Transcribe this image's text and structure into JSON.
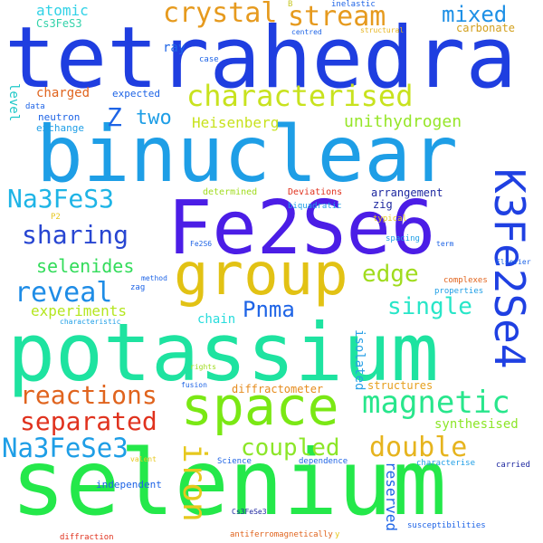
{
  "words": [
    {
      "id": "tetrahedra",
      "text": "tetrahedra",
      "color": "#1f3ee0"
    },
    {
      "id": "binuclear",
      "text": "binuclear",
      "color": "#1e9ee6"
    },
    {
      "id": "fe2se6",
      "text": "Fe2Se6",
      "color": "#4b1de6"
    },
    {
      "id": "potassium",
      "text": "potassium",
      "color": "#1ee3a0"
    },
    {
      "id": "selenium",
      "text": "selenium",
      "color": "#24e84a"
    },
    {
      "id": "group",
      "text": "group",
      "color": "#e2c214"
    },
    {
      "id": "space",
      "text": "space",
      "color": "#7ae814"
    },
    {
      "id": "k3fe2se4",
      "text": "K3Fe2Se4",
      "color": "#1f40e2"
    },
    {
      "id": "characterised",
      "text": "characterised",
      "color": "#c8e21e"
    },
    {
      "id": "crystal",
      "text": "crystal",
      "color": "#e69a1e"
    },
    {
      "id": "stream",
      "text": "stream",
      "color": "#e69a1e"
    },
    {
      "id": "mixed",
      "text": "mixed",
      "color": "#1e90e6"
    },
    {
      "id": "atomic",
      "text": "atomic",
      "color": "#32d2e6"
    },
    {
      "id": "carbonate",
      "text": "carbonate",
      "color": "#d2a01e"
    },
    {
      "id": "ray",
      "text": "ray",
      "color": "#1e64e6"
    },
    {
      "id": "z",
      "text": "Z",
      "color": "#1e64e6"
    },
    {
      "id": "two",
      "text": "two",
      "color": "#1e9ee6"
    },
    {
      "id": "heisenberg",
      "text": "Heisenberg",
      "color": "#c8e21e"
    },
    {
      "id": "unithydrogen",
      "text": "unithydrogen",
      "color": "#96e628"
    },
    {
      "id": "charged",
      "text": "charged",
      "color": "#e0641e"
    },
    {
      "id": "expected",
      "text": "expected",
      "color": "#1e64e6"
    },
    {
      "id": "level",
      "text": "level",
      "color": "#1ec8c8"
    },
    {
      "id": "neutron",
      "text": "neutron",
      "color": "#1e64e6"
    },
    {
      "id": "exchange",
      "text": "exchange",
      "color": "#1e9ee6"
    },
    {
      "id": "data",
      "text": "data",
      "color": "#1e64e6"
    },
    {
      "id": "na3fes3",
      "text": "Na3FeS3",
      "color": "#1eb4e6"
    },
    {
      "id": "sharing",
      "text": "sharing",
      "color": "#2846d2"
    },
    {
      "id": "selenides",
      "text": "selenides",
      "color": "#32dc5a"
    },
    {
      "id": "reveal",
      "text": "reveal",
      "color": "#1e8ce6"
    },
    {
      "id": "edge",
      "text": "edge",
      "color": "#a0dc1e"
    },
    {
      "id": "pnma",
      "text": "Pnma",
      "color": "#1e64e6"
    },
    {
      "id": "single",
      "text": "single",
      "color": "#28e6c8"
    },
    {
      "id": "experiments",
      "text": "experiments",
      "color": "#b4e61e"
    },
    {
      "id": "chain",
      "text": "chain",
      "color": "#28dcdc"
    },
    {
      "id": "reactions",
      "text": "reactions",
      "color": "#e0641e"
    },
    {
      "id": "separated",
      "text": "separated",
      "color": "#e0321e"
    },
    {
      "id": "magnetic",
      "text": "magnetic",
      "color": "#28e68c"
    },
    {
      "id": "iron",
      "text": "iron",
      "color": "#e6c81e"
    },
    {
      "id": "na3fese3",
      "text": "Na3FeSe3",
      "color": "#1e9ee6"
    },
    {
      "id": "coupled",
      "text": "coupled",
      "color": "#8ce628"
    },
    {
      "id": "double",
      "text": "double",
      "color": "#e6b41e"
    },
    {
      "id": "synthesised",
      "text": "synthesised",
      "color": "#8ce628"
    },
    {
      "id": "reserved",
      "text": "reserved",
      "color": "#1e64e6"
    },
    {
      "id": "isolated",
      "text": "isolated",
      "color": "#28a0e6"
    },
    {
      "id": "diffractometer",
      "text": "diffractometer",
      "color": "#e68c1e"
    },
    {
      "id": "structures",
      "text": "structures",
      "color": "#e6a01e"
    },
    {
      "id": "cs3fes3_top",
      "text": "Cs3FeS3",
      "color": "#32d2aa"
    },
    {
      "id": "b",
      "text": "B",
      "color": "#c8c828"
    },
    {
      "id": "inelastic",
      "text": "inelastic",
      "color": "#1e64e6"
    },
    {
      "id": "centred",
      "text": "centred",
      "color": "#1e64e6"
    },
    {
      "id": "structural",
      "text": "structural",
      "color": "#e6b41e"
    },
    {
      "id": "case",
      "text": "case",
      "color": "#1e64e6"
    },
    {
      "id": "determined",
      "text": "determined",
      "color": "#a0dc1e"
    },
    {
      "id": "deviations",
      "text": "Deviations",
      "color": "#e0321e"
    },
    {
      "id": "arrangement",
      "text": "arrangement",
      "color": "#1e28a0"
    },
    {
      "id": "zig",
      "text": "zig",
      "color": "#1e28a0"
    },
    {
      "id": "biquadratic",
      "text": "biquadratic",
      "color": "#1e9ee6"
    },
    {
      "id": "p2",
      "text": "P2",
      "color": "#e6c81e"
    },
    {
      "id": "typical",
      "text": "typical",
      "color": "#e6c81e"
    },
    {
      "id": "fe2s6",
      "text": "Fe2S6",
      "color": "#1e64e6"
    },
    {
      "id": "spacing",
      "text": "spacing",
      "color": "#1e9ee6"
    },
    {
      "id": "term",
      "text": "term",
      "color": "#1e64e6"
    },
    {
      "id": "elsevier",
      "text": "Elsevier",
      "color": "#1e64e6"
    },
    {
      "id": "complexes",
      "text": "complexes",
      "color": "#e0641e"
    },
    {
      "id": "properties",
      "text": "properties",
      "color": "#1e9ee6"
    },
    {
      "id": "method",
      "text": "method",
      "color": "#1e64e6"
    },
    {
      "id": "zag",
      "text": "zag",
      "color": "#1e64e6"
    },
    {
      "id": "characteristic",
      "text": "characteristic",
      "color": "#1e9ee6"
    },
    {
      "id": "rights",
      "text": "rights",
      "color": "#a0dc1e"
    },
    {
      "id": "fusion",
      "text": "fusion",
      "color": "#1e64e6"
    },
    {
      "id": "science",
      "text": "Science",
      "color": "#1e64e6"
    },
    {
      "id": "dependence",
      "text": "dependence",
      "color": "#1e64e6"
    },
    {
      "id": "characterise",
      "text": "characterise",
      "color": "#1e9ee6"
    },
    {
      "id": "carried",
      "text": "carried",
      "color": "#1e28a0"
    },
    {
      "id": "valent",
      "text": "valent",
      "color": "#e6c81e"
    },
    {
      "id": "independent",
      "text": "independent",
      "color": "#1e64e6"
    },
    {
      "id": "cs3fese3",
      "text": "Cs3FeSe3",
      "color": "#1e28a0"
    },
    {
      "id": "diffraction",
      "text": "diffraction",
      "color": "#e0321e"
    },
    {
      "id": "antiferromagnetically",
      "text": "antiferromagnetically",
      "color": "#e0641e"
    },
    {
      "id": "y",
      "text": "y",
      "color": "#e6c81e"
    },
    {
      "id": "susceptibilities",
      "text": "susceptibilities",
      "color": "#1e64e6"
    }
  ]
}
